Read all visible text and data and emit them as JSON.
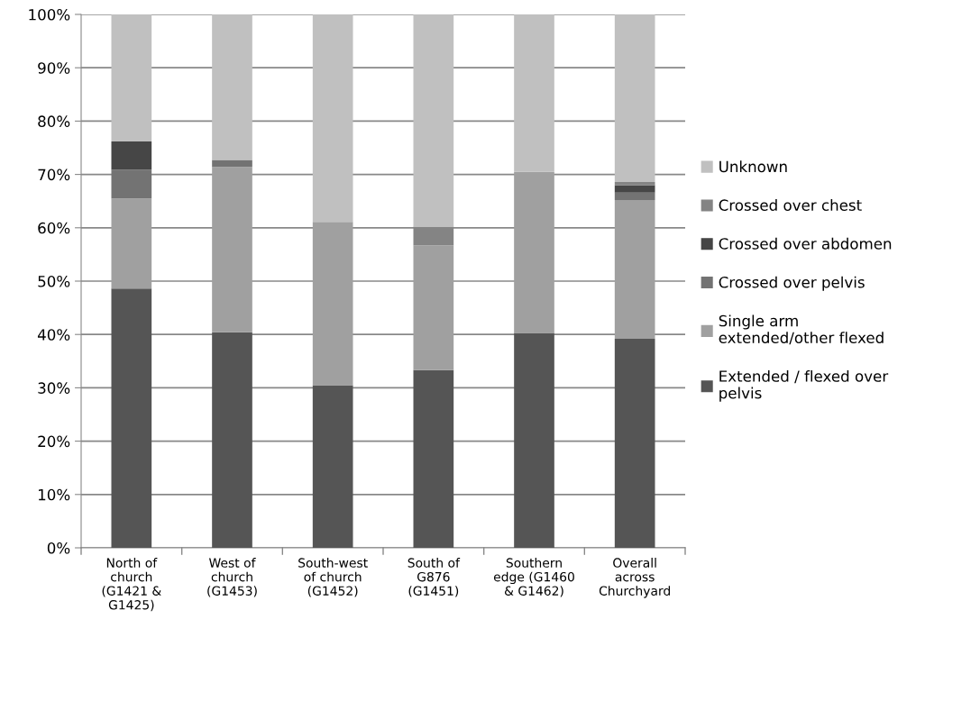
{
  "chart_data": {
    "type": "bar",
    "stacked": true,
    "categories": [
      "North of\nchurch\n(G1421 &\nG1425)",
      "West of\nchurch\n(G1453)",
      "South-west\nof church\n(G1452)",
      "South of\nG876\n(G1451)",
      "Southern\nedge (G1460\n& G1462)",
      "Overall\nacross\nChurchyard"
    ],
    "series": [
      {
        "name": "Extended / flexed over\npelvis",
        "color": "#555555",
        "values": [
          48.6,
          40.4,
          30.5,
          33.3,
          40.3,
          39.2
        ]
      },
      {
        "name": "Single arm\nextended/other flexed",
        "color": "#a0a0a0",
        "values": [
          16.9,
          31.0,
          30.6,
          23.4,
          30.2,
          26.0
        ]
      },
      {
        "name": "Crossed over pelvis",
        "color": "#737373",
        "values": [
          5.4,
          1.3,
          0,
          0,
          0,
          1.4
        ]
      },
      {
        "name": "Crossed over abdomen",
        "color": "#464646",
        "values": [
          5.3,
          0,
          0,
          0,
          0,
          1.4
        ]
      },
      {
        "name": "Crossed over chest",
        "color": "#848484",
        "values": [
          0,
          0,
          0,
          3.5,
          0,
          0.6
        ]
      },
      {
        "name": "Unknown",
        "color": "#c0c0c0",
        "values": [
          23.8,
          27.3,
          38.9,
          39.8,
          29.5,
          31.4
        ]
      }
    ],
    "ylim": [
      0,
      100
    ],
    "yticks": [
      {
        "value": 0,
        "label": "0%"
      },
      {
        "value": 10,
        "label": "10%"
      },
      {
        "value": 20,
        "label": "20%"
      },
      {
        "value": 30,
        "label": "30%"
      },
      {
        "value": 40,
        "label": "40%"
      },
      {
        "value": 50,
        "label": "50%"
      },
      {
        "value": 60,
        "label": "60%"
      },
      {
        "value": 70,
        "label": "70%"
      },
      {
        "value": 80,
        "label": "80%"
      },
      {
        "value": 90,
        "label": "90%"
      },
      {
        "value": 100,
        "label": "100%"
      }
    ],
    "grid": "y",
    "legend": "right"
  }
}
